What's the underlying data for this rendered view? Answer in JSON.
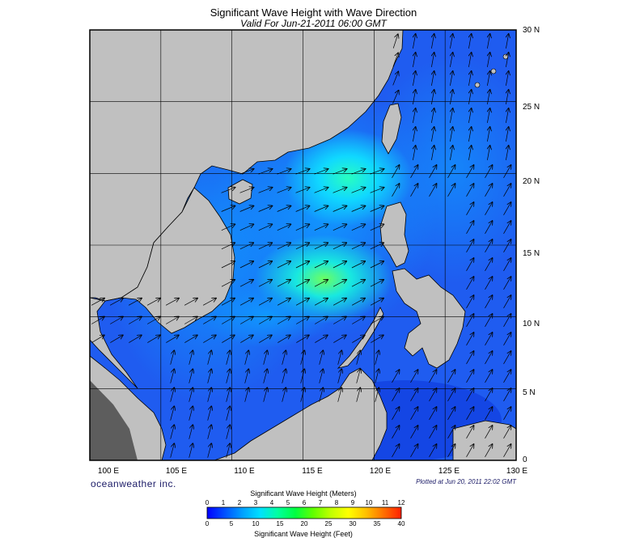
{
  "title": "Significant Wave Height with Wave Direction",
  "subtitle": "Valid For Jun-21-2011 06:00 GMT",
  "brand": "oceanweather inc.",
  "plotted": "Plotted at Jun 20, 2011 22:02 GMT",
  "map": {
    "lon_range": [
      100,
      130
    ],
    "lat_range": [
      0,
      30
    ],
    "lat_labels": [
      "30 N",
      "25 N",
      "20 N",
      "15 N",
      "10 N",
      "5 N",
      "0"
    ],
    "lon_labels": [
      "100 E",
      "105 E",
      "110 E",
      "115 E",
      "120 E",
      "125 E",
      "130 E"
    ],
    "land_color": "#c0c0c0",
    "water_base_color": "#1f5cf0"
  },
  "colorbar": {
    "title_meters": "Significant Wave Height (Meters)",
    "title_feet": "Significant Wave Height (Feet)",
    "meter_ticks": [
      "0",
      "1",
      "2",
      "3",
      "4",
      "5",
      "6",
      "7",
      "8",
      "9",
      "10",
      "11",
      "12"
    ],
    "feet_ticks": [
      "0",
      "5",
      "10",
      "15",
      "20",
      "25",
      "30",
      "35",
      "40"
    ],
    "colors": [
      "#0000ff",
      "#0050ff",
      "#00a0ff",
      "#00e0ff",
      "#00ffa0",
      "#00ff40",
      "#60ff00",
      "#c0ff00",
      "#ffff00",
      "#ffc000",
      "#ff7000",
      "#ff2000"
    ]
  }
}
